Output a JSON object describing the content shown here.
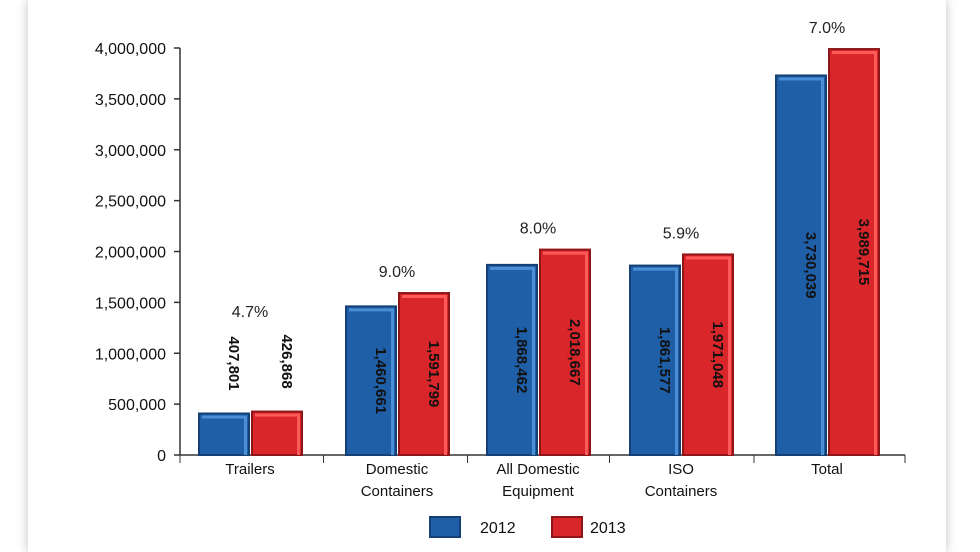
{
  "chart_data": {
    "type": "bar",
    "title": "",
    "xlabel": "",
    "ylabel": "",
    "ylim": [
      0,
      4000000
    ],
    "yticks": [
      "0",
      "500,000",
      "1,000,000",
      "1,500,000",
      "2,000,000",
      "2,500,000",
      "3,000,000",
      "3,500,000",
      "4,000,000"
    ],
    "categories": [
      [
        "Trailers"
      ],
      [
        "Domestic",
        "Containers"
      ],
      [
        "All Domestic",
        "Equipment"
      ],
      [
        "ISO",
        "Containers"
      ],
      [
        "Total"
      ]
    ],
    "series": [
      {
        "name": "2012",
        "color": "#1f5fa8",
        "values": [
          407801,
          1460661,
          1868462,
          1861577,
          3730039
        ],
        "labels": [
          "407,801",
          "1,460,661",
          "1,868,462",
          "1,861,577",
          "3,730,039"
        ]
      },
      {
        "name": "2013",
        "color": "#d9262a",
        "values": [
          426868,
          1591799,
          2018667,
          1971048,
          3989715
        ],
        "labels": [
          "426,868",
          "1,591,799",
          "2,018,667",
          "1,971,048",
          "3,989,715"
        ]
      }
    ],
    "growth_labels": [
      "4.7%",
      "9.0%",
      "8.0%",
      "5.9%",
      "7.0%"
    ],
    "grid": false,
    "legend_position": "bottom"
  }
}
